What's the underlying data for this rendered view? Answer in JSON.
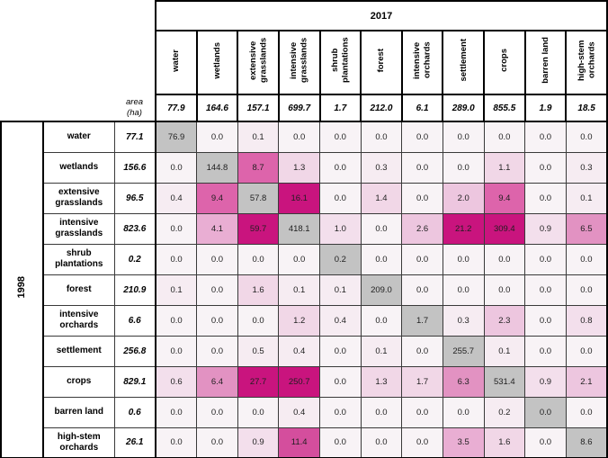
{
  "style": {
    "diagonal_color": "#c3c3c3",
    "value_text_color": "#1f1f1f",
    "scale": [
      {
        "max": 0.05,
        "color": "#f8f3f6"
      },
      {
        "max": 0.55,
        "color": "#f6ecf2"
      },
      {
        "max": 1.05,
        "color": "#f3dfec"
      },
      {
        "max": 1.75,
        "color": "#f1d7e7"
      },
      {
        "max": 2.65,
        "color": "#edc6df"
      },
      {
        "max": 4.5,
        "color": "#e9aed3"
      },
      {
        "max": 6.6,
        "color": "#e292c2"
      },
      {
        "max": 9.5,
        "color": "#dd64ab"
      },
      {
        "max": 12.0,
        "color": "#d44e9d"
      },
      {
        "max": 999999,
        "color": "#c9147e"
      }
    ]
  },
  "chart_data": {
    "type": "heatmap",
    "col_group_label": "2017",
    "row_group_label": "1998",
    "area_header_line1": "area",
    "area_header_line2": "(ha)",
    "categories": [
      "water",
      "wetlands",
      "extensive grasslands",
      "intensive grasslands",
      "shrub plantations",
      "forest",
      "intensive orchards",
      "settlement",
      "crops",
      "barren land",
      "high-stem orchards"
    ],
    "col_areas": [
      77.9,
      164.6,
      157.1,
      699.7,
      1.7,
      212.0,
      6.1,
      289.0,
      855.5,
      1.9,
      18.5
    ],
    "row_areas": [
      77.1,
      156.6,
      96.5,
      823.6,
      0.2,
      210.9,
      6.6,
      256.8,
      829.1,
      0.6,
      26.1
    ],
    "values": [
      [
        76.9,
        0.0,
        0.1,
        0.0,
        0.0,
        0.0,
        0.0,
        0.0,
        0.0,
        0.0,
        0.0
      ],
      [
        0.0,
        144.8,
        8.7,
        1.3,
        0.0,
        0.3,
        0.0,
        0.0,
        1.1,
        0.0,
        0.3
      ],
      [
        0.4,
        9.4,
        57.8,
        16.1,
        0.0,
        1.4,
        0.0,
        2.0,
        9.4,
        0.0,
        0.1
      ],
      [
        0.0,
        4.1,
        59.7,
        418.1,
        1.0,
        0.0,
        2.6,
        21.2,
        309.4,
        0.9,
        6.5
      ],
      [
        0.0,
        0.0,
        0.0,
        0.0,
        0.2,
        0.0,
        0.0,
        0.0,
        0.0,
        0.0,
        0.0
      ],
      [
        0.1,
        0.0,
        1.6,
        0.1,
        0.1,
        209.0,
        0.0,
        0.0,
        0.0,
        0.0,
        0.0
      ],
      [
        0.0,
        0.0,
        0.0,
        1.2,
        0.4,
        0.0,
        1.7,
        0.3,
        2.3,
        0.0,
        0.8
      ],
      [
        0.0,
        0.0,
        0.5,
        0.4,
        0.0,
        0.1,
        0.0,
        255.7,
        0.1,
        0.0,
        0.0
      ],
      [
        0.6,
        6.4,
        27.7,
        250.7,
        0.0,
        1.3,
        1.7,
        6.3,
        531.4,
        0.9,
        2.1
      ],
      [
        0.0,
        0.0,
        0.0,
        0.4,
        0.0,
        0.0,
        0.0,
        0.0,
        0.2,
        0.0,
        0.0
      ],
      [
        0.0,
        0.0,
        0.9,
        11.4,
        0.0,
        0.0,
        0.0,
        3.5,
        1.6,
        0.0,
        8.6
      ]
    ]
  }
}
